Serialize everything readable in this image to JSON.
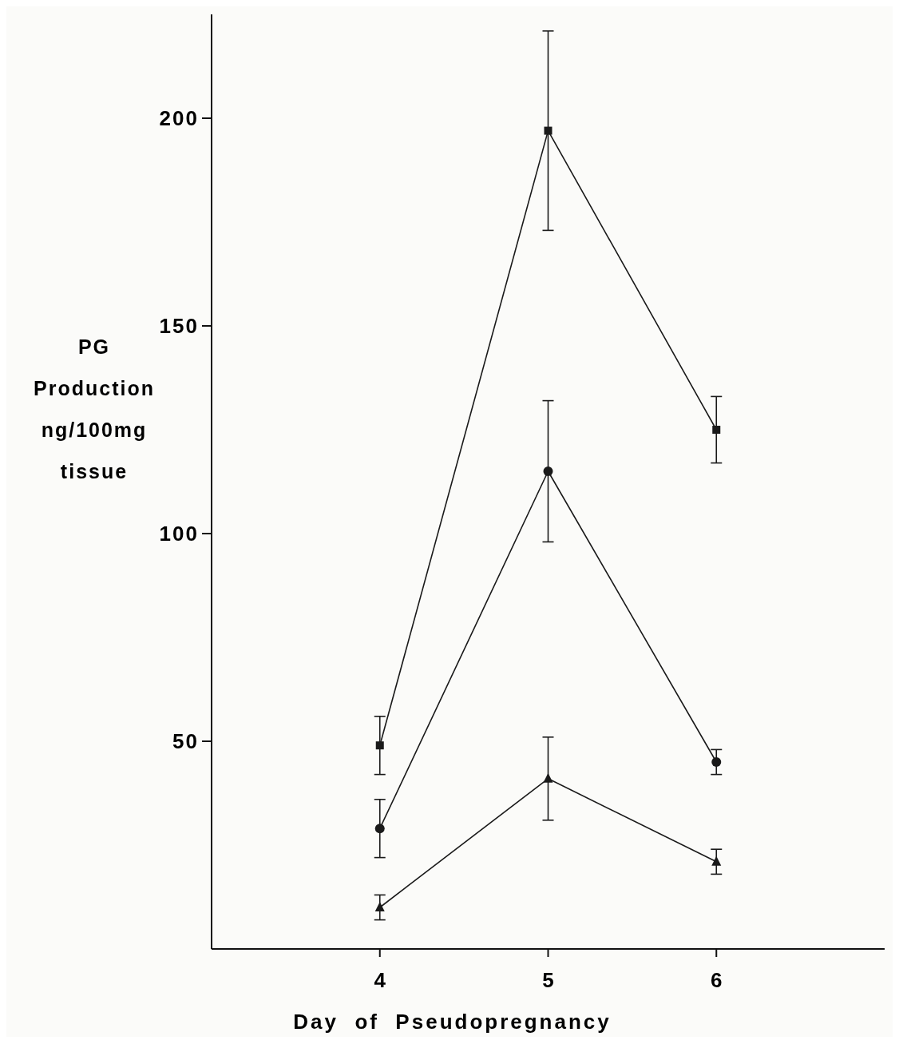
{
  "chart_data": {
    "type": "line",
    "xlabel": "Day  of  Pseudopregnancy",
    "ylabel": "PG\nProduction\nng/100mg\ntissue",
    "x": [
      4,
      5,
      6
    ],
    "xlim": [
      3,
      7
    ],
    "xticks": [
      4,
      5,
      6
    ],
    "ylim": [
      0,
      225
    ],
    "yticks": [
      50,
      100,
      150,
      200
    ],
    "grid": false,
    "line_style": "solid",
    "series": [
      {
        "color": "#1a1a1a",
        "marker": "square",
        "values": [
          49,
          197,
          125
        ],
        "errors": [
          7,
          24,
          8
        ]
      },
      {
        "color": "#1a1a1a",
        "marker": "circle",
        "values": [
          29,
          115,
          45
        ],
        "errors": [
          7,
          17,
          3
        ]
      },
      {
        "color": "#1a1a1a",
        "marker": "triangle",
        "values": [
          10,
          41,
          21
        ],
        "errors": [
          3,
          10,
          3
        ]
      }
    ]
  }
}
